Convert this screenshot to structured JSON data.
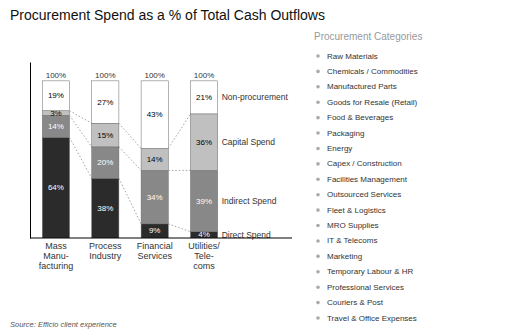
{
  "chart_data": {
    "type": "bar",
    "stacked": true,
    "data_labels": true,
    "tick_labels": "x",
    "title": "Procurement Spend as a % of Total Cash Outflows",
    "categories": [
      "Mass\nManu-\nfacturing",
      "Process\nIndustry",
      "Financial\nServices",
      "Utilities/\nTele-\ncoms"
    ],
    "series": [
      {
        "name": "Direct Spend",
        "color": "#2b2b2b",
        "values": [
          64,
          38,
          9,
          4
        ],
        "value_labels": [
          "64%",
          "38%",
          "9%",
          "4%"
        ]
      },
      {
        "name": "Indirect Spend",
        "color": "#888888",
        "values": [
          14,
          20,
          34,
          39
        ],
        "value_labels": [
          "14%",
          "20%",
          "34%",
          "39%"
        ]
      },
      {
        "name": "Capital Spend",
        "color": "#c0c0c0",
        "values": [
          3,
          15,
          14,
          36
        ],
        "value_labels": [
          "3%",
          "15%",
          "14%",
          "36%"
        ]
      },
      {
        "name": "Non-procurement",
        "color": "#ffffff",
        "values": [
          19,
          27,
          43,
          21
        ],
        "value_labels": [
          "19%",
          "27%",
          "43%",
          "21%"
        ]
      }
    ],
    "totals": {
      "values": [
        100,
        100,
        100,
        100
      ],
      "value_labels": [
        "100%",
        "100%",
        "100%",
        "100%"
      ]
    },
    "ylim": [
      0,
      112
    ],
    "yticks": [],
    "source": "Source: Efficio client experience",
    "side_panel": {
      "title": "Procurement Categories",
      "items": [
        "Raw Materials",
        "Chemicals / Commodities",
        "Manufactured Parts",
        "Goods for Resale (Retail)",
        "Food & Beverages",
        "Packaging",
        "Energy",
        "Capex / Construction",
        "Facilities Management",
        "Outsourced Services",
        "Fleet & Logistics",
        "MRO Supplies",
        "IT & Telecoms",
        "Marketing",
        "Temporary Labour & HR",
        "Professional Services",
        "Couriers & Post",
        "Travel & Office Expenses"
      ]
    }
  }
}
